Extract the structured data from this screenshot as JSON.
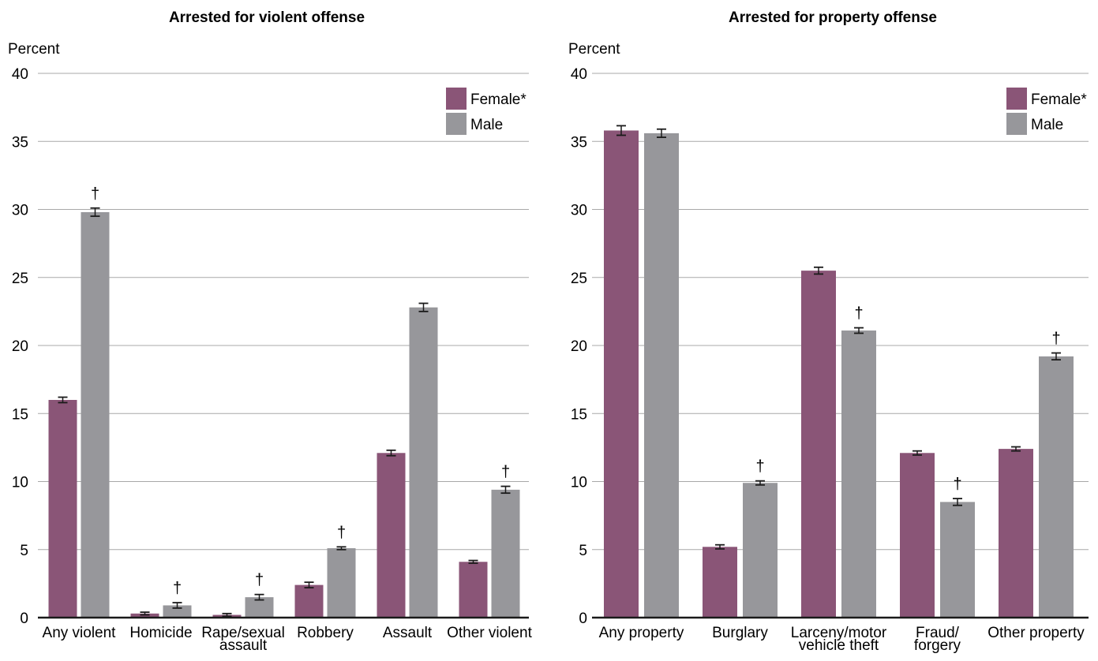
{
  "colors": {
    "female": "#8a5577",
    "male": "#97979b",
    "grid": "#a8a8a8",
    "axis": "#1a1a1a",
    "errorbar": "#1a1a1a"
  },
  "chart_data": [
    {
      "type": "bar",
      "title": "Arrested for violent offense",
      "ylabel": "Percent",
      "ylim": [
        0,
        40
      ],
      "yticks": [
        "0",
        "5",
        "10",
        "15",
        "20",
        "25",
        "30",
        "35",
        "40"
      ],
      "grid": true,
      "legend_position": "top-right",
      "categories": [
        "Any violent",
        "Homicide",
        "Rape/sexual assault",
        "Robbery",
        "Assault",
        "Other violent"
      ],
      "category_lines": [
        [
          "Any violent"
        ],
        [
          "Homicide"
        ],
        [
          "Rape/sexual",
          "assault"
        ],
        [
          "Robbery"
        ],
        [
          "Assault"
        ],
        [
          "Other violent"
        ]
      ],
      "series": [
        {
          "name": "Female*",
          "values": [
            16.0,
            0.3,
            0.2,
            2.4,
            12.1,
            4.1
          ],
          "errors": [
            0.2,
            0.1,
            0.1,
            0.2,
            0.2,
            0.1
          ]
        },
        {
          "name": "Male",
          "values": [
            29.8,
            0.9,
            1.5,
            5.1,
            22.8,
            9.4
          ],
          "errors": [
            0.3,
            0.2,
            0.2,
            0.1,
            0.3,
            0.25
          ]
        }
      ],
      "significance_marker": "†",
      "significant_male": [
        true,
        true,
        true,
        true,
        false,
        true
      ]
    },
    {
      "type": "bar",
      "title": "Arrested for property offense",
      "ylabel": "Percent",
      "ylim": [
        0,
        40
      ],
      "yticks": [
        "0",
        "5",
        "10",
        "15",
        "20",
        "25",
        "30",
        "35",
        "40"
      ],
      "grid": true,
      "legend_position": "top-right",
      "categories": [
        "Any property",
        "Burglary",
        "Larceny/motor vehicle theft",
        "Fraud/forgery",
        "Other property"
      ],
      "category_lines": [
        [
          "Any property"
        ],
        [
          "Burglary"
        ],
        [
          "Larceny/motor",
          "vehicle theft"
        ],
        [
          "Fraud/",
          "forgery"
        ],
        [
          "Other property"
        ]
      ],
      "series": [
        {
          "name": "Female*",
          "values": [
            35.8,
            5.2,
            25.5,
            12.1,
            12.4
          ],
          "errors": [
            0.35,
            0.15,
            0.25,
            0.15,
            0.15
          ]
        },
        {
          "name": "Male",
          "values": [
            35.6,
            9.9,
            21.1,
            8.5,
            19.2
          ],
          "errors": [
            0.3,
            0.15,
            0.2,
            0.25,
            0.25
          ]
        }
      ],
      "significance_marker": "†",
      "significant_male": [
        false,
        true,
        true,
        true,
        true
      ]
    }
  ]
}
